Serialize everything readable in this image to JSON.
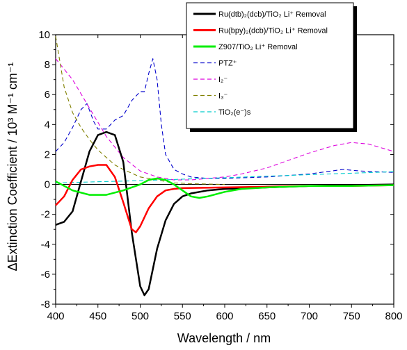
{
  "chart_data": {
    "type": "line",
    "xlabel": "Wavelength / nm",
    "ylabel": "ΔExtinction Coefficient / 10³ M⁻¹ cm⁻¹",
    "xlim": [
      400,
      800
    ],
    "ylim": [
      -8,
      10
    ],
    "xticks": [
      "400",
      "450",
      "500",
      "550",
      "600",
      "650",
      "700",
      "750",
      "800"
    ],
    "yticks": [
      "-8",
      "-6",
      "-4",
      "-2",
      "0",
      "2",
      "4",
      "6",
      "8",
      "10"
    ],
    "grid": false,
    "legend_position": "top-right",
    "series": [
      {
        "name": "Ru(dtb)₂(dcb)/TiO₂ Li⁺ Removal",
        "color": "#000000",
        "dash": "solid",
        "x": [
          400,
          410,
          420,
          430,
          440,
          450,
          460,
          470,
          480,
          490,
          500,
          505,
          510,
          520,
          530,
          540,
          550,
          560,
          580,
          600,
          650,
          700,
          750,
          800
        ],
        "y": [
          -2.7,
          -2.5,
          -1.8,
          0.2,
          2.2,
          3.3,
          3.5,
          3.3,
          1.5,
          -3.2,
          -6.8,
          -7.4,
          -7.0,
          -4.3,
          -2.4,
          -1.3,
          -0.8,
          -0.6,
          -0.4,
          -0.3,
          -0.2,
          -0.1,
          -0.05,
          0.0
        ]
      },
      {
        "name": "Ru(bpy)₂(dcb)/TiO₂ Li⁺ Removal",
        "color": "#ff0000",
        "dash": "solid",
        "x": [
          400,
          410,
          420,
          430,
          440,
          450,
          460,
          470,
          480,
          490,
          495,
          500,
          510,
          520,
          530,
          540,
          550,
          600,
          650,
          700,
          750,
          800
        ],
        "y": [
          -1.4,
          -0.8,
          0.3,
          1.0,
          1.2,
          1.3,
          1.3,
          0.5,
          -1.2,
          -3.0,
          -3.2,
          -2.8,
          -1.6,
          -0.8,
          -0.4,
          -0.3,
          -0.25,
          -0.2,
          -0.15,
          -0.1,
          -0.1,
          -0.05
        ]
      },
      {
        "name": "Z907/TiO₂ Li⁺ Removal",
        "color": "#00ee00",
        "dash": "solid",
        "x": [
          400,
          420,
          440,
          460,
          480,
          500,
          510,
          520,
          530,
          540,
          550,
          560,
          570,
          580,
          600,
          620,
          650,
          700,
          750,
          800
        ],
        "y": [
          0.2,
          -0.4,
          -0.7,
          -0.7,
          -0.4,
          0.0,
          0.3,
          0.4,
          0.3,
          0.0,
          -0.4,
          -0.8,
          -0.9,
          -0.8,
          -0.5,
          -0.3,
          -0.2,
          -0.1,
          -0.1,
          -0.05
        ]
      },
      {
        "name": "PTZ⁺",
        "color": "#0000cc",
        "dash": "6,4",
        "x": [
          400,
          410,
          420,
          430,
          437,
          445,
          450,
          460,
          470,
          480,
          490,
          500,
          505,
          510,
          515,
          520,
          525,
          530,
          540,
          550,
          560,
          580,
          600,
          650,
          700,
          740,
          760,
          800
        ],
        "y": [
          2.2,
          2.8,
          3.8,
          5.0,
          5.4,
          4.2,
          3.7,
          3.7,
          4.3,
          4.6,
          5.6,
          6.2,
          6.2,
          7.4,
          8.4,
          7.0,
          4.0,
          2.0,
          1.0,
          0.7,
          0.5,
          0.4,
          0.4,
          0.5,
          0.7,
          1.0,
          0.9,
          0.8
        ]
      },
      {
        "name": "I₂⁻",
        "color": "#dd00dd",
        "dash": "6,4",
        "x": [
          400,
          420,
          440,
          460,
          480,
          500,
          520,
          540,
          560,
          580,
          600,
          620,
          650,
          700,
          730,
          750,
          770,
          800
        ],
        "y": [
          8.4,
          7.0,
          5.1,
          3.2,
          1.8,
          0.9,
          0.5,
          0.3,
          0.3,
          0.4,
          0.5,
          0.7,
          1.1,
          2.1,
          2.6,
          2.8,
          2.7,
          2.2
        ]
      },
      {
        "name": "I₃⁻",
        "color": "#808000",
        "dash": "6,4",
        "x": [
          400,
          410,
          420,
          430,
          440,
          450,
          460,
          470,
          480,
          500,
          520,
          540,
          560,
          600
        ],
        "y": [
          9.9,
          6.5,
          4.8,
          3.8,
          3.0,
          2.3,
          1.8,
          1.3,
          1.0,
          0.5,
          0.3,
          0.1,
          0.05,
          0.0
        ]
      },
      {
        "name": "TiO₂(e⁻)s",
        "color": "#00cccc",
        "dash": "6,4",
        "x": [
          400,
          450,
          500,
          550,
          600,
          650,
          700,
          750,
          800
        ],
        "y": [
          0.1,
          0.18,
          0.25,
          0.35,
          0.45,
          0.55,
          0.65,
          0.75,
          0.85
        ]
      }
    ]
  }
}
